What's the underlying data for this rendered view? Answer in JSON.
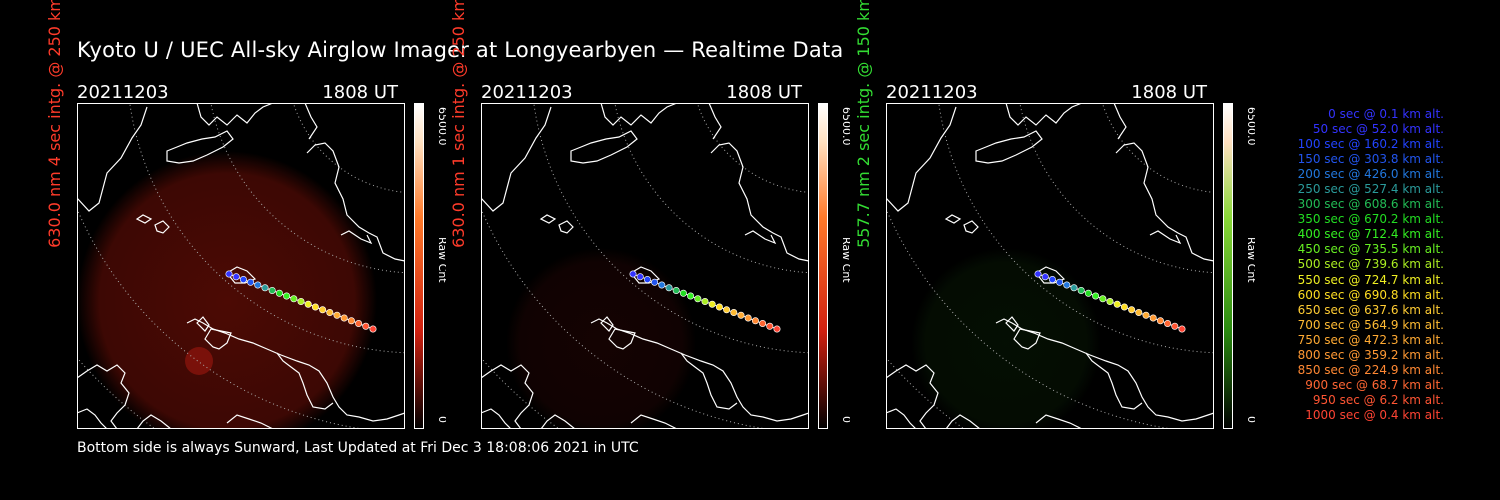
{
  "title": "Kyoto U / UEC All-sky Airglow Imager at Longyearbyen — Realtime Data",
  "footer": "Bottom side is always Sunward, Last Updated at Fri Dec  3 18:08:06 2021 in UTC",
  "panels": [
    {
      "date": "20211203",
      "time": "1808 UT",
      "side_label": "630.0 nm 4 sec intg. @ 250 km",
      "label_color": "#ff3b2a",
      "colorbar_top": "#ff7a2a",
      "colorbar_mid": "#d02010",
      "colorbar_max_label": "6500.0",
      "colorbar_unit_label": "Raw Cnt",
      "colorbar_min_label": "0",
      "tint": "#8a1208",
      "tint_opacity": 0.55
    },
    {
      "date": "20211203",
      "time": "1808 UT",
      "side_label": "630.0 nm 1 sec intg. @ 250 km",
      "label_color": "#ff3b2a",
      "colorbar_top": "#ff7a2a",
      "colorbar_mid": "#d02010",
      "colorbar_max_label": "6500.0",
      "colorbar_unit_label": "Raw Cnt",
      "colorbar_min_label": "0",
      "tint": "#3a0806",
      "tint_opacity": 0.35
    },
    {
      "date": "20211203",
      "time": "1808 UT",
      "side_label": "557.7 nm 2 sec intg. @ 150 km",
      "label_color": "#33dd33",
      "colorbar_top": "#8ad838",
      "colorbar_mid": "#2a8a10",
      "colorbar_max_label": "6500.0",
      "colorbar_unit_label": "Raw Cnt",
      "colorbar_min_label": "0",
      "tint": "#0d2a08",
      "tint_opacity": 0.35
    }
  ],
  "trajectory": [
    {
      "text": "0 sec @    0.1 km alt.",
      "color": "#3333ff"
    },
    {
      "text": "50 sec @   52.0 km alt.",
      "color": "#3333ff"
    },
    {
      "text": "100 sec @ 160.2 km alt.",
      "color": "#2244ff"
    },
    {
      "text": "150 sec @ 303.8 km alt.",
      "color": "#2255ee"
    },
    {
      "text": "200 sec @ 426.0 km alt.",
      "color": "#2277dd"
    },
    {
      "text": "250 sec @ 527.4 km alt.",
      "color": "#2a9a9a"
    },
    {
      "text": "300 sec @ 608.6 km alt.",
      "color": "#22bb55"
    },
    {
      "text": "350 sec @ 670.2 km alt.",
      "color": "#22dd22"
    },
    {
      "text": "400 sec @ 712.4 km alt.",
      "color": "#33ee22"
    },
    {
      "text": "450 sec @ 735.5 km alt.",
      "color": "#66ee22"
    },
    {
      "text": "500 sec @ 739.6 km alt.",
      "color": "#aaee22"
    },
    {
      "text": "550 sec @ 724.7 km alt.",
      "color": "#eeee22"
    },
    {
      "text": "600 sec @ 690.8 km alt.",
      "color": "#ffdd22"
    },
    {
      "text": "650 sec @ 637.6 km alt.",
      "color": "#ffcc33"
    },
    {
      "text": "700 sec @ 564.9 km alt.",
      "color": "#ffbb33"
    },
    {
      "text": "750 sec @ 472.3 km alt.",
      "color": "#ffaa33"
    },
    {
      "text": "800 sec @ 359.2 km alt.",
      "color": "#ff9933"
    },
    {
      "text": "850 sec @ 224.9 km alt.",
      "color": "#ff8833"
    },
    {
      "text": "900 sec @   68.7 km alt.",
      "color": "#ff6633"
    },
    {
      "text": "950 sec @    6.2 km alt.",
      "color": "#ff5533"
    },
    {
      "text": "1000 sec @    0.4 km alt.",
      "color": "#ff4433"
    }
  ]
}
